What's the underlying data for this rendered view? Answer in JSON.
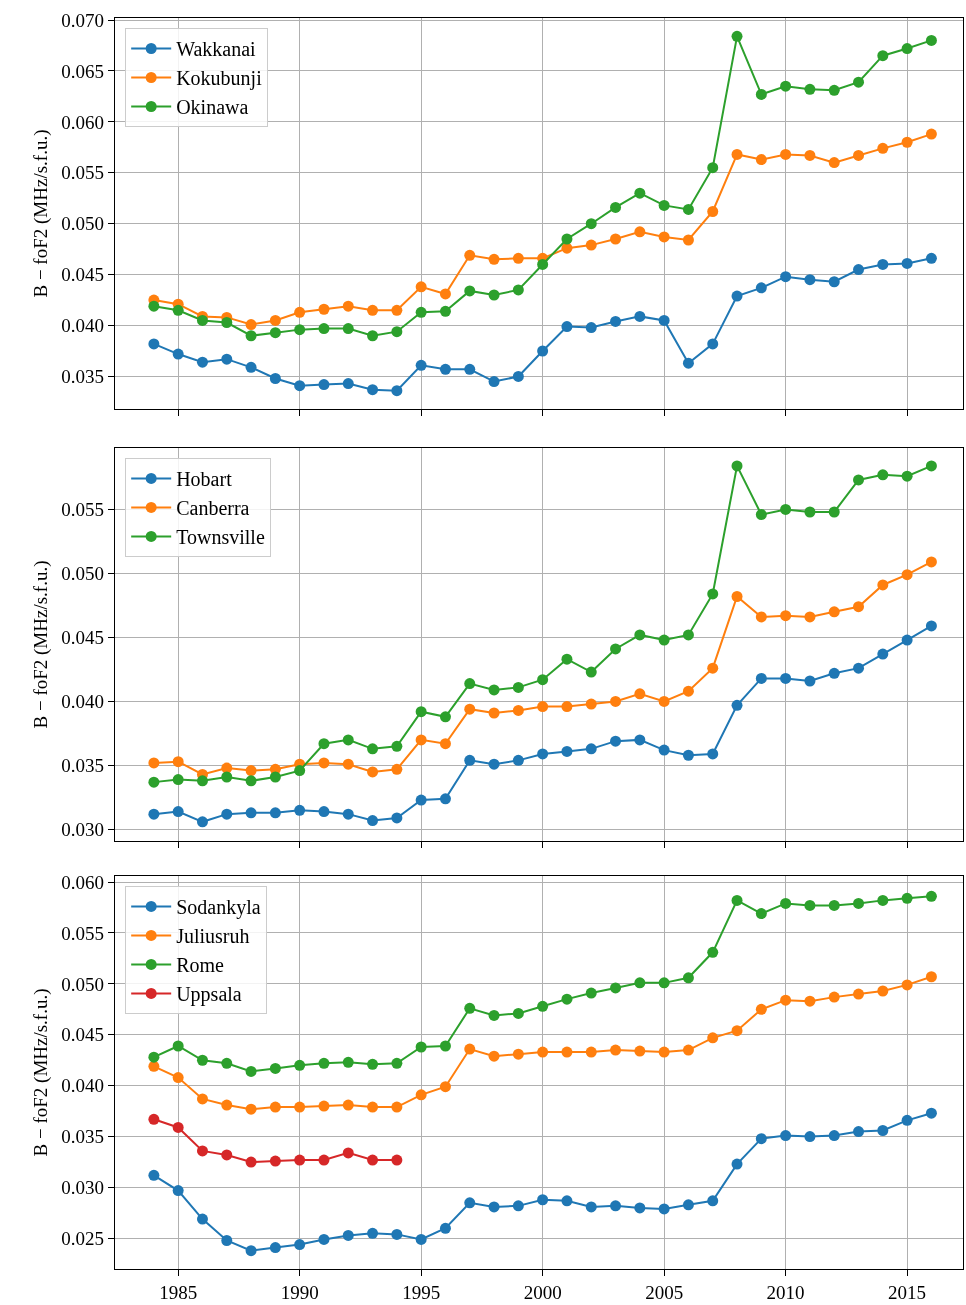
{
  "chart_data": [
    {
      "type": "line",
      "ylabel": "B − foF2 (MHz/s.f.u.)",
      "x": [
        1984,
        1985,
        1986,
        1987,
        1988,
        1989,
        1990,
        1991,
        1992,
        1993,
        1994,
        1995,
        1996,
        1997,
        1998,
        1999,
        2000,
        2001,
        2002,
        2003,
        2004,
        2005,
        2006,
        2007,
        2008,
        2009,
        2010,
        2011,
        2012,
        2013,
        2014,
        2015,
        2016
      ],
      "xlim": [
        1982.4,
        2017.3
      ],
      "xticks": [
        1985,
        1990,
        1995,
        2000,
        2005,
        2010,
        2015
      ],
      "ylim": [
        0.0318,
        0.0702
      ],
      "yticks": [
        {
          "value": 0.035,
          "label": "0.035"
        },
        {
          "value": 0.04,
          "label": "0.040"
        },
        {
          "value": 0.045,
          "label": "0.045"
        },
        {
          "value": 0.05,
          "label": "0.050"
        },
        {
          "value": 0.055,
          "label": "0.055"
        },
        {
          "value": 0.06,
          "label": "0.060"
        },
        {
          "value": 0.065,
          "label": "0.065"
        },
        {
          "value": 0.07,
          "label": "0.070"
        }
      ],
      "grid": true,
      "legend": "top left",
      "marker": "circle",
      "line_style": "solid",
      "tick_labels": "y",
      "series": [
        {
          "name": "Wakkanai",
          "color": "#1f77b4",
          "values": [
            0.0382,
            0.0372,
            0.0364,
            0.0367,
            0.0359,
            0.0348,
            0.0341,
            0.0342,
            0.0343,
            0.0337,
            0.0336,
            0.0361,
            0.0357,
            0.0357,
            0.0345,
            0.035,
            0.0375,
            0.0399,
            0.0398,
            0.0404,
            0.0409,
            0.0405,
            0.0363,
            0.0382,
            0.0429,
            0.0437,
            0.0448,
            0.0445,
            0.0443,
            0.0455,
            0.046,
            0.0461,
            0.0466
          ]
        },
        {
          "name": "Kokubunji",
          "color": "#ff7f0e",
          "values": [
            0.0425,
            0.0421,
            0.0409,
            0.0408,
            0.0401,
            0.0405,
            0.0413,
            0.0416,
            0.0419,
            0.0415,
            0.0415,
            0.0438,
            0.0431,
            0.0469,
            0.0465,
            0.0466,
            0.0466,
            0.0476,
            0.0479,
            0.0485,
            0.0492,
            0.0487,
            0.0484,
            0.0512,
            0.0568,
            0.0563,
            0.0568,
            0.0567,
            0.056,
            0.0567,
            0.0574,
            0.058,
            0.0588
          ]
        },
        {
          "name": "Okinawa",
          "color": "#2ca02c",
          "values": [
            0.0419,
            0.0415,
            0.0405,
            0.0403,
            0.039,
            0.0393,
            0.0396,
            0.0397,
            0.0397,
            0.039,
            0.0394,
            0.0413,
            0.0414,
            0.0434,
            0.043,
            0.0435,
            0.046,
            0.0485,
            0.05,
            0.0516,
            0.053,
            0.0518,
            0.0514,
            0.0555,
            0.0684,
            0.0627,
            0.0635,
            0.0632,
            0.0631,
            0.0639,
            0.0665,
            0.0672,
            0.068
          ]
        }
      ]
    },
    {
      "type": "line",
      "ylabel": "B − foF2 (MHz/s.f.u.)",
      "x": [
        1984,
        1985,
        1986,
        1987,
        1988,
        1989,
        1990,
        1991,
        1992,
        1993,
        1994,
        1995,
        1996,
        1997,
        1998,
        1999,
        2000,
        2001,
        2002,
        2003,
        2004,
        2005,
        2006,
        2007,
        2008,
        2009,
        2010,
        2011,
        2012,
        2013,
        2014,
        2015,
        2016
      ],
      "xlim": [
        1982.4,
        2017.3
      ],
      "xticks": [
        1985,
        1990,
        1995,
        2000,
        2005,
        2010,
        2015
      ],
      "ylim": [
        0.0291,
        0.0598
      ],
      "yticks": [
        {
          "value": 0.03,
          "label": "0.030"
        },
        {
          "value": 0.035,
          "label": "0.035"
        },
        {
          "value": 0.04,
          "label": "0.040"
        },
        {
          "value": 0.045,
          "label": "0.045"
        },
        {
          "value": 0.05,
          "label": "0.050"
        },
        {
          "value": 0.055,
          "label": "0.055"
        }
      ],
      "grid": true,
      "legend": "top left",
      "marker": "circle",
      "line_style": "solid",
      "tick_labels": "y",
      "series": [
        {
          "name": "Hobart",
          "color": "#1f77b4",
          "values": [
            0.0312,
            0.0314,
            0.0306,
            0.0312,
            0.0313,
            0.0313,
            0.0315,
            0.0314,
            0.0312,
            0.0307,
            0.0309,
            0.0323,
            0.0324,
            0.0354,
            0.0351,
            0.0354,
            0.0359,
            0.0361,
            0.0363,
            0.0369,
            0.037,
            0.0362,
            0.0358,
            0.0359,
            0.0397,
            0.0418,
            0.0418,
            0.0416,
            0.0422,
            0.0426,
            0.0437,
            0.0448,
            0.0459
          ]
        },
        {
          "name": "Canberra",
          "color": "#ff7f0e",
          "values": [
            0.0352,
            0.0353,
            0.0343,
            0.0348,
            0.0346,
            0.0347,
            0.0351,
            0.0352,
            0.0351,
            0.0345,
            0.0347,
            0.037,
            0.0367,
            0.0394,
            0.0391,
            0.0393,
            0.0396,
            0.0396,
            0.0398,
            0.04,
            0.0406,
            0.04,
            0.0408,
            0.0426,
            0.0482,
            0.0466,
            0.0467,
            0.0466,
            0.047,
            0.0474,
            0.0491,
            0.0499,
            0.0509
          ]
        },
        {
          "name": "Townsville",
          "color": "#2ca02c",
          "values": [
            0.0337,
            0.0339,
            0.0338,
            0.0341,
            0.0338,
            0.0341,
            0.0346,
            0.0367,
            0.037,
            0.0363,
            0.0365,
            0.0392,
            0.0388,
            0.0414,
            0.0409,
            0.0411,
            0.0417,
            0.0433,
            0.0423,
            0.0441,
            0.0452,
            0.0448,
            0.0452,
            0.0484,
            0.0584,
            0.0546,
            0.055,
            0.0548,
            0.0548,
            0.0573,
            0.0577,
            0.0576,
            0.0584
          ]
        }
      ]
    },
    {
      "type": "line",
      "ylabel": "B − foF2 (MHz/s.f.u.)",
      "x": [
        1984,
        1985,
        1986,
        1987,
        1988,
        1989,
        1990,
        1991,
        1992,
        1993,
        1994,
        1995,
        1996,
        1997,
        1998,
        1999,
        2000,
        2001,
        2002,
        2003,
        2004,
        2005,
        2006,
        2007,
        2008,
        2009,
        2010,
        2011,
        2012,
        2013,
        2014,
        2015,
        2016
      ],
      "xlim": [
        1982.4,
        2017.3
      ],
      "xticks": [
        1985,
        1990,
        1995,
        2000,
        2005,
        2010,
        2015
      ],
      "ylim": [
        0.022,
        0.0606
      ],
      "yticks": [
        {
          "value": 0.025,
          "label": "0.025"
        },
        {
          "value": 0.03,
          "label": "0.030"
        },
        {
          "value": 0.035,
          "label": "0.035"
        },
        {
          "value": 0.04,
          "label": "0.040"
        },
        {
          "value": 0.045,
          "label": "0.045"
        },
        {
          "value": 0.05,
          "label": "0.050"
        },
        {
          "value": 0.055,
          "label": "0.055"
        },
        {
          "value": 0.06,
          "label": "0.060"
        }
      ],
      "grid": true,
      "legend": "top left",
      "marker": "circle",
      "line_style": "solid",
      "series": [
        {
          "name": "Sodankyla",
          "color": "#1f77b4",
          "values": [
            0.0312,
            0.0297,
            0.0269,
            0.0248,
            0.0238,
            0.0241,
            0.0244,
            0.0249,
            0.0253,
            0.0255,
            0.0254,
            0.0249,
            0.026,
            0.0285,
            0.0281,
            0.0282,
            0.0288,
            0.0287,
            0.0281,
            0.0282,
            0.028,
            0.0279,
            0.0283,
            0.0287,
            0.0323,
            0.0348,
            0.0351,
            0.035,
            0.0351,
            0.0355,
            0.0356,
            0.0366,
            0.0373
          ]
        },
        {
          "name": "Juliusruh",
          "color": "#ff7f0e",
          "values": [
            0.0419,
            0.0408,
            0.0387,
            0.0381,
            0.0377,
            0.0379,
            0.0379,
            0.038,
            0.0381,
            0.0379,
            0.0379,
            0.0391,
            0.0399,
            0.0436,
            0.0429,
            0.0431,
            0.0433,
            0.0433,
            0.0433,
            0.0435,
            0.0434,
            0.0433,
            0.0435,
            0.0447,
            0.0454,
            0.0475,
            0.0484,
            0.0483,
            0.0487,
            0.049,
            0.0493,
            0.0499,
            0.0507
          ]
        },
        {
          "name": "Rome",
          "color": "#2ca02c",
          "values": [
            0.0428,
            0.0439,
            0.0425,
            0.0422,
            0.0414,
            0.0417,
            0.042,
            0.0422,
            0.0423,
            0.0421,
            0.0422,
            0.0438,
            0.0439,
            0.0476,
            0.0469,
            0.0471,
            0.0478,
            0.0485,
            0.0491,
            0.0496,
            0.0501,
            0.0501,
            0.0506,
            0.0531,
            0.0582,
            0.0569,
            0.0579,
            0.0577,
            0.0577,
            0.0579,
            0.0582,
            0.0584,
            0.0586
          ]
        },
        {
          "name": "Uppsala",
          "color": "#d62728",
          "values": [
            0.0367,
            0.0359,
            0.0336,
            0.0332,
            0.0325,
            0.0326,
            0.0327,
            0.0327,
            0.0334,
            0.0327,
            0.0327,
            null,
            null,
            null,
            null,
            null,
            null,
            null,
            null,
            null,
            null,
            null,
            null,
            null,
            null,
            null,
            null,
            null,
            null,
            null,
            null,
            null,
            null
          ]
        }
      ]
    }
  ]
}
